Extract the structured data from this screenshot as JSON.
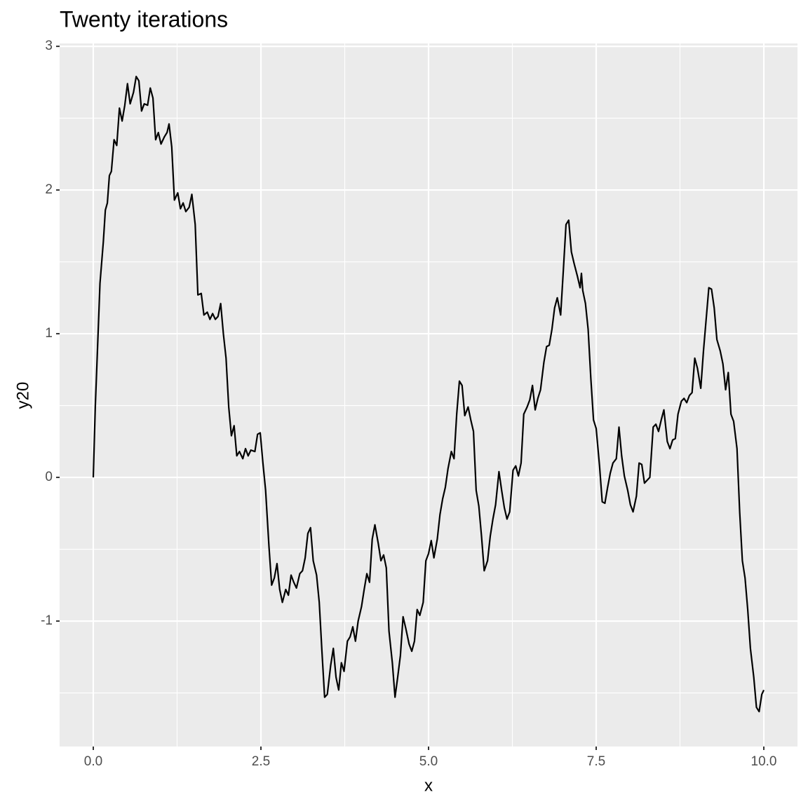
{
  "chart_data": {
    "type": "line",
    "title": "Twenty iterations",
    "x_label": "x",
    "y_label": "y20",
    "color": "#000000",
    "grid": true,
    "xlim": [
      -0.502,
      10.502
    ],
    "ylim": [
      -1.873,
      3.02
    ],
    "xticks": [
      {
        "value": 0,
        "label": "0.0"
      },
      2.5,
      {
        "value": 5,
        "label": "5.0"
      },
      7.5,
      {
        "value": 10,
        "label": "10.0"
      }
    ],
    "yticks": [
      -1,
      0,
      1,
      2,
      3
    ],
    "x": [
      0,
      0.03,
      0.07,
      0.1,
      0.15,
      0.18,
      0.21,
      0.24,
      0.27,
      0.31,
      0.35,
      0.39,
      0.43,
      0.47,
      0.51,
      0.55,
      0.6,
      0.64,
      0.68,
      0.72,
      0.76,
      0.81,
      0.85,
      0.89,
      0.93,
      0.97,
      1.01,
      1.06,
      1.1,
      1.13,
      1.17,
      1.21,
      1.26,
      1.3,
      1.34,
      1.38,
      1.43,
      1.47,
      1.52,
      1.56,
      1.61,
      1.65,
      1.7,
      1.74,
      1.78,
      1.82,
      1.86,
      1.9,
      1.94,
      1.98,
      2.02,
      2.06,
      2.1,
      2.14,
      2.18,
      2.23,
      2.27,
      2.31,
      2.35,
      2.41,
      2.45,
      2.49,
      2.53,
      2.57,
      2.62,
      2.66,
      2.7,
      2.74,
      2.78,
      2.82,
      2.87,
      2.91,
      2.95,
      2.99,
      3.03,
      3.08,
      3.12,
      3.16,
      3.2,
      3.24,
      3.28,
      3.33,
      3.37,
      3.41,
      3.45,
      3.49,
      3.54,
      3.58,
      3.62,
      3.66,
      3.7,
      3.74,
      3.79,
      3.83,
      3.87,
      3.91,
      3.95,
      4,
      4.04,
      4.08,
      4.12,
      4.16,
      4.2,
      4.25,
      4.29,
      4.33,
      4.37,
      4.41,
      4.46,
      4.5,
      4.54,
      4.58,
      4.62,
      4.66,
      4.71,
      4.75,
      4.79,
      4.83,
      4.87,
      4.92,
      4.96,
      5,
      5.04,
      5.08,
      5.13,
      5.17,
      5.21,
      5.25,
      5.29,
      5.34,
      5.38,
      5.42,
      5.46,
      5.5,
      5.54,
      5.59,
      5.63,
      5.67,
      5.71,
      5.75,
      5.79,
      5.83,
      5.88,
      5.92,
      5.96,
      6,
      6.05,
      6.09,
      6.13,
      6.17,
      6.21,
      6.26,
      6.3,
      6.34,
      6.38,
      6.42,
      6.47,
      6.51,
      6.55,
      6.59,
      6.63,
      6.67,
      6.72,
      6.76,
      6.8,
      6.84,
      6.88,
      6.92,
      6.97,
      7.01,
      7.05,
      7.09,
      7.13,
      7.17,
      7.22,
      7.26,
      7.28,
      7.3,
      7.34,
      7.38,
      7.42,
      7.46,
      7.5,
      7.55,
      7.59,
      7.63,
      7.67,
      7.71,
      7.75,
      7.8,
      7.84,
      7.88,
      7.92,
      7.97,
      8.01,
      8.05,
      8.1,
      8.14,
      8.18,
      8.22,
      8.26,
      8.3,
      8.35,
      8.39,
      8.43,
      8.47,
      8.51,
      8.56,
      8.6,
      8.64,
      8.68,
      8.72,
      8.77,
      8.81,
      8.85,
      8.89,
      8.93,
      8.97,
      9.01,
      9.06,
      9.1,
      9.14,
      9.18,
      9.22,
      9.26,
      9.3,
      9.35,
      9.39,
      9.43,
      9.47,
      9.51,
      9.55,
      9.6,
      9.64,
      9.68,
      9.72,
      9.76,
      9.8,
      9.85,
      9.89,
      9.93,
      9.97,
      10
    ],
    "values": [
      0,
      0.49,
      0.98,
      1.35,
      1.64,
      1.86,
      1.91,
      2.1,
      2.13,
      2.35,
      2.31,
      2.57,
      2.48,
      2.59,
      2.74,
      2.6,
      2.68,
      2.79,
      2.76,
      2.55,
      2.6,
      2.59,
      2.71,
      2.64,
      2.35,
      2.4,
      2.32,
      2.37,
      2.4,
      2.46,
      2.3,
      1.93,
      1.98,
      1.87,
      1.91,
      1.85,
      1.88,
      1.97,
      1.76,
      1.27,
      1.28,
      1.13,
      1.15,
      1.1,
      1.14,
      1.1,
      1.12,
      1.21,
      1,
      0.83,
      0.49,
      0.29,
      0.36,
      0.15,
      0.18,
      0.13,
      0.2,
      0.15,
      0.19,
      0.18,
      0.3,
      0.31,
      0.1,
      -0.09,
      -0.48,
      -0.75,
      -0.7,
      -0.6,
      -0.78,
      -0.87,
      -0.78,
      -0.82,
      -0.68,
      -0.73,
      -0.77,
      -0.67,
      -0.65,
      -0.56,
      -0.39,
      -0.35,
      -0.58,
      -0.68,
      -0.87,
      -1.21,
      -1.53,
      -1.51,
      -1.31,
      -1.19,
      -1.39,
      -1.48,
      -1.29,
      -1.35,
      -1.14,
      -1.11,
      -1.04,
      -1.14,
      -1,
      -0.9,
      -0.78,
      -0.67,
      -0.73,
      -0.43,
      -0.33,
      -0.46,
      -0.58,
      -0.54,
      -0.63,
      -1.07,
      -1.29,
      -1.53,
      -1.39,
      -1.24,
      -0.97,
      -1.05,
      -1.16,
      -1.21,
      -1.14,
      -0.92,
      -0.96,
      -0.87,
      -0.58,
      -0.53,
      -0.44,
      -0.56,
      -0.43,
      -0.26,
      -0.15,
      -0.07,
      0.06,
      0.18,
      0.13,
      0.44,
      0.67,
      0.64,
      0.43,
      0.49,
      0.4,
      0.32,
      -0.09,
      -0.2,
      -0.41,
      -0.65,
      -0.58,
      -0.41,
      -0.29,
      -0.19,
      0.04,
      -0.09,
      -0.21,
      -0.29,
      -0.24,
      0.05,
      0.08,
      0.01,
      0.1,
      0.44,
      0.49,
      0.54,
      0.64,
      0.47,
      0.55,
      0.61,
      0.8,
      0.91,
      0.92,
      1.03,
      1.18,
      1.25,
      1.13,
      1.44,
      1.76,
      1.79,
      1.57,
      1.49,
      1.4,
      1.32,
      1.42,
      1.3,
      1.21,
      1.03,
      0.69,
      0.4,
      0.34,
      0.08,
      -0.17,
      -0.18,
      -0.07,
      0.03,
      0.1,
      0.13,
      0.35,
      0.15,
      0.01,
      -0.09,
      -0.19,
      -0.24,
      -0.13,
      0.1,
      0.09,
      -0.04,
      -0.02,
      0,
      0.35,
      0.37,
      0.32,
      0.4,
      0.47,
      0.25,
      0.2,
      0.26,
      0.27,
      0.44,
      0.53,
      0.55,
      0.52,
      0.57,
      0.59,
      0.83,
      0.76,
      0.62,
      0.88,
      1.1,
      1.32,
      1.31,
      1.18,
      0.96,
      0.88,
      0.79,
      0.61,
      0.73,
      0.44,
      0.39,
      0.2,
      -0.24,
      -0.58,
      -0.7,
      -0.92,
      -1.19,
      -1.39,
      -1.6,
      -1.63,
      -1.51,
      -1.48
    ]
  }
}
